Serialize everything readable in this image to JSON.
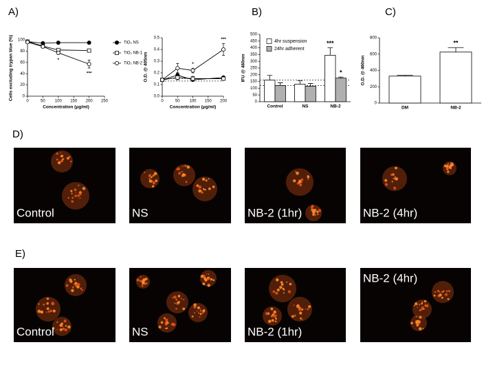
{
  "panel_labels": [
    "A)",
    "B)",
    "C)"
  ],
  "chart_data": [
    {
      "type": "line",
      "xlabel": "Concentration (μg/ml)",
      "ylabel": "Cells excluding trypan blue (%)",
      "x": [
        0,
        50,
        100,
        200
      ],
      "xlim": [
        0,
        250
      ],
      "xticks": [
        0,
        50,
        100,
        150,
        200,
        250
      ],
      "ylim": [
        0,
        100
      ],
      "yticks": [
        0,
        20,
        40,
        60,
        80,
        100
      ],
      "legend": "right",
      "series": [
        {
          "name": "TiO₂ NS",
          "color": "#000000",
          "marker": "filled-circle",
          "values": [
            97,
            94,
            95,
            95
          ],
          "errors": [
            1,
            1,
            1,
            1
          ],
          "significance": [
            null,
            null,
            null,
            null
          ]
        },
        {
          "name": "TiO₂ NB-1",
          "color": "#000000",
          "marker": "open-square",
          "values": [
            97,
            89,
            82,
            81
          ],
          "errors": [
            1,
            2,
            3,
            2
          ],
          "significance": [
            null,
            null,
            null,
            null
          ]
        },
        {
          "name": "TiO₂ NB-2",
          "color": "#000000",
          "marker": "open-circle",
          "values": [
            96,
            88,
            77,
            57
          ],
          "errors": [
            1,
            2,
            3,
            7
          ],
          "significance": [
            null,
            null,
            "*",
            "***"
          ]
        }
      ]
    },
    {
      "type": "line",
      "xlabel": "Concentration (μg/ml)",
      "ylabel": "O.D. @ 405nm",
      "x": [
        0,
        50,
        100,
        200
      ],
      "xlim": [
        0,
        200
      ],
      "xticks": [
        0,
        50,
        100,
        150,
        200
      ],
      "ylim": [
        0,
        0.5
      ],
      "yticks": [
        {
          "value": 0,
          "label": "0.0"
        },
        0.1,
        0.2,
        0.3,
        0.4,
        0.5
      ],
      "reference_lines": [
        0.13,
        0.15
      ],
      "series": [
        {
          "color": "#000000",
          "marker": "filled-circle",
          "values": [
            0.14,
            0.18,
            0.14,
            0.16
          ],
          "errors": [
            0.01,
            0.02,
            0.01,
            0.01
          ],
          "significance": [
            null,
            null,
            null,
            null
          ]
        },
        {
          "color": "#000000",
          "marker": "open-square",
          "values": [
            0.14,
            0.16,
            0.15,
            0.15
          ],
          "errors": [
            0.01,
            0.02,
            0.02,
            0.01
          ],
          "significance": [
            null,
            null,
            null,
            null
          ]
        },
        {
          "color": "#000000",
          "marker": "open-circle",
          "values": [
            0.14,
            0.24,
            0.22,
            0.4
          ],
          "errors": [
            0.01,
            0.04,
            0.02,
            0.05
          ],
          "significance": [
            null,
            null,
            "*",
            "***"
          ]
        }
      ]
    },
    {
      "type": "bar",
      "ylabel": "IFU @ 460nm",
      "categories": [
        "Control",
        "NS",
        "NB-2"
      ],
      "ylim": [
        0,
        500
      ],
      "yticks": [
        0,
        50,
        100,
        150,
        200,
        250,
        300,
        350,
        400,
        450,
        500
      ],
      "reference_lines": [
        160,
        120
      ],
      "legend": "top",
      "series": [
        {
          "name": "4hr suspension",
          "color": "#ffffff",
          "values": [
            160,
            130,
            345
          ],
          "errors": [
            35,
            25,
            55
          ],
          "significance": [
            null,
            null,
            "***"
          ]
        },
        {
          "name": "24hr adherent",
          "color": "#b0b0b0",
          "values": [
            120,
            115,
            175
          ],
          "errors": [
            20,
            20,
            8
          ],
          "significance": [
            null,
            null,
            "*"
          ]
        }
      ]
    },
    {
      "type": "bar",
      "ylabel": "O.D. @ 460nm",
      "categories": [
        "DM",
        "NB-2"
      ],
      "ylim": [
        0,
        800
      ],
      "yticks": [
        0,
        200,
        400,
        600,
        800
      ],
      "series": [
        {
          "color": "#ffffff",
          "values": [
            330,
            625
          ],
          "errors": [
            10,
            55
          ],
          "significance": [
            null,
            "**"
          ]
        }
      ]
    }
  ],
  "image_rows": [
    {
      "label": "D)",
      "captions": [
        "Control",
        "NS",
        "NB-2 (1hr)",
        "NB-2 (4hr)"
      ]
    },
    {
      "label": "E)",
      "captions": [
        "Control",
        "NS",
        "NB-2 (1hr)",
        "NB-2 (4hr)"
      ]
    }
  ]
}
